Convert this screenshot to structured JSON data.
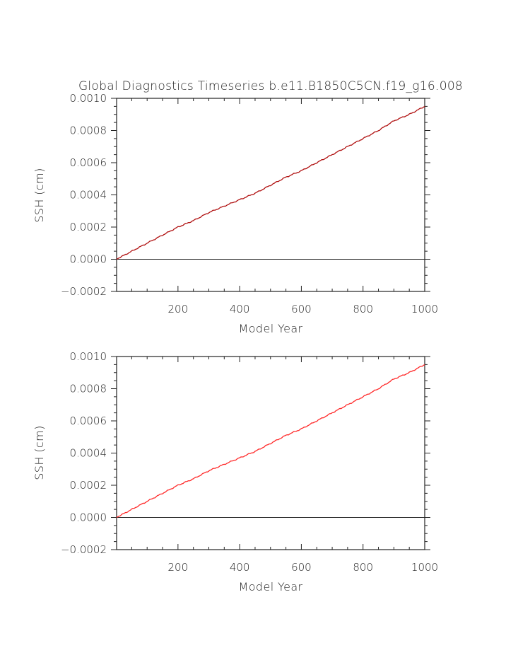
{
  "figure": {
    "title": "Global Diagnostics Timeseries b.e11.B1850C5CN.f19_g16.008"
  },
  "chart_data": [
    {
      "type": "line",
      "xlabel": "Model Year",
      "ylabel": "SSH (cm)",
      "xlim": [
        1,
        1000
      ],
      "ylim": [
        -0.0002,
        0.001
      ],
      "xticks": [
        200,
        400,
        600,
        800,
        1000
      ],
      "xtick_labels": [
        "200",
        "400",
        "600",
        "800",
        "1000"
      ],
      "yticks": [
        -0.0002,
        0.0,
        0.0002,
        0.0004,
        0.0006,
        0.0008,
        0.001
      ],
      "ytick_labels": [
        "−0.0002",
        "0.0000",
        "0.0002",
        "0.0004",
        "0.0006",
        "0.0008",
        "0.0010"
      ],
      "reference_line": 0.0,
      "grid": false,
      "series": [
        {
          "name": "SSH",
          "color": "#b01010",
          "x": [
            1,
            50,
            100,
            150,
            200,
            250,
            300,
            350,
            400,
            450,
            500,
            550,
            600,
            650,
            700,
            750,
            800,
            850,
            900,
            950,
            1000
          ],
          "values": [
            0.0,
            5e-05,
            0.0001,
            0.00015,
            0.0002,
            0.00024,
            0.00029,
            0.00033,
            0.00037,
            0.00041,
            0.00046,
            0.00051,
            0.00055,
            0.0006,
            0.00065,
            0.0007,
            0.00075,
            0.0008,
            0.00086,
            0.0009,
            0.00095
          ]
        }
      ]
    },
    {
      "type": "line",
      "xlabel": "Model Year",
      "ylabel": "SSH (cm)",
      "xlim": [
        1,
        1000
      ],
      "ylim": [
        -0.0002,
        0.001
      ],
      "xticks": [
        200,
        400,
        600,
        800,
        1000
      ],
      "xtick_labels": [
        "200",
        "400",
        "600",
        "800",
        "1000"
      ],
      "yticks": [
        -0.0002,
        0.0,
        0.0002,
        0.0004,
        0.0006,
        0.0008,
        0.001
      ],
      "ytick_labels": [
        "−0.0002",
        "0.0000",
        "0.0002",
        "0.0004",
        "0.0006",
        "0.0008",
        "0.0010"
      ],
      "reference_line": 0.0,
      "grid": false,
      "series": [
        {
          "name": "SSH",
          "color": "#ff2a2a",
          "x": [
            1,
            50,
            100,
            150,
            200,
            250,
            300,
            350,
            400,
            450,
            500,
            550,
            600,
            650,
            700,
            750,
            800,
            850,
            900,
            950,
            1000
          ],
          "values": [
            0.0,
            5e-05,
            0.0001,
            0.00015,
            0.0002,
            0.00024,
            0.00029,
            0.00033,
            0.00037,
            0.00041,
            0.00046,
            0.00051,
            0.00055,
            0.0006,
            0.00065,
            0.0007,
            0.00075,
            0.0008,
            0.00086,
            0.0009,
            0.00095
          ]
        }
      ]
    }
  ]
}
